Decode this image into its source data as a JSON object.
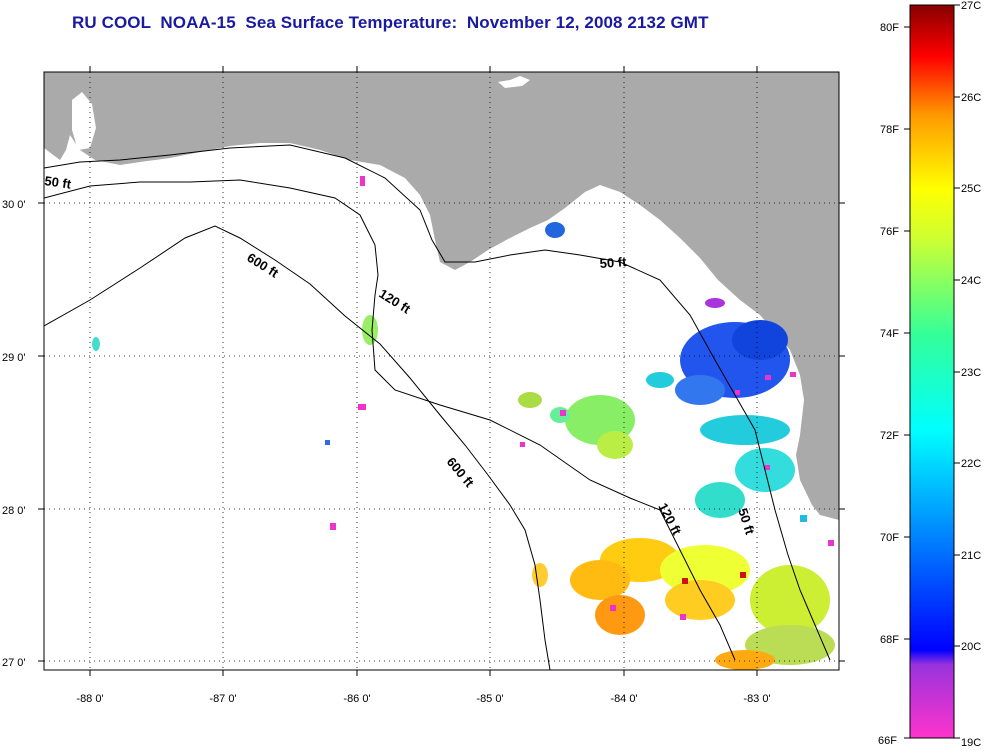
{
  "title": "RU COOL  NOAA-15  Sea Surface Temperature:  November 12, 2008 2132 GMT",
  "map": {
    "x_ticks": [
      "-88 0'",
      "-87 0'",
      "-86 0'",
      "-85 0'",
      "-84 0'",
      "-83 0'"
    ],
    "y_ticks": [
      "30 0'",
      "29 0'",
      "28 0'",
      "27 0'"
    ],
    "land_color": "#aaaaaa",
    "grid": "dotted"
  },
  "contours": [
    {
      "name": "contour-50ft-west",
      "label": "50 ft"
    },
    {
      "name": "contour-50ft-mid",
      "label": "50 ft"
    },
    {
      "name": "contour-50ft-east",
      "label": "50 ft"
    },
    {
      "name": "contour-120ft-north",
      "label": "120 ft"
    },
    {
      "name": "contour-120ft-south",
      "label": "120 ft"
    },
    {
      "name": "contour-600ft-north",
      "label": "600 ft"
    },
    {
      "name": "contour-600ft-south",
      "label": "600 ft"
    }
  ],
  "colorbar": {
    "fahrenheit": [
      "80F",
      "78F",
      "76F",
      "74F",
      "72F",
      "70F",
      "68F",
      "66F"
    ],
    "celsius": [
      "27C",
      "26C",
      "25C",
      "24C",
      "23C",
      "22C",
      "21C",
      "20C",
      "19C"
    ],
    "range_c": [
      19,
      27
    ],
    "range_f": [
      66,
      80.6
    ]
  }
}
